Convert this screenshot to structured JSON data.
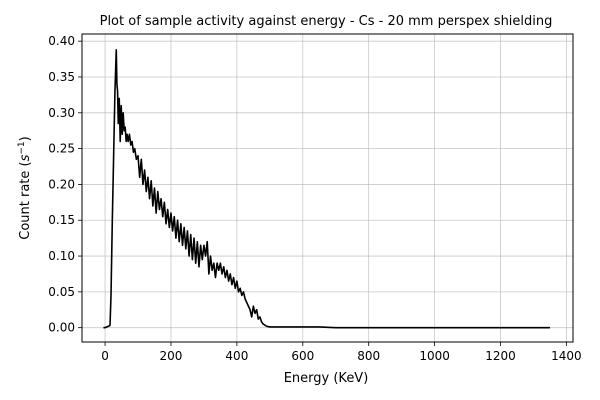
{
  "chart_data": {
    "type": "line",
    "title": "Plot of sample activity against energy - Cs - 20 mm perspex shielding",
    "xlabel": "Energy (KeV)",
    "ylabel_main": "Count rate (",
    "ylabel_base": "s",
    "ylabel_sup": "−1",
    "ylabel_close": ")",
    "xlim": [
      -70,
      1420
    ],
    "ylim": [
      -0.02,
      0.41
    ],
    "grid": true,
    "x_ticks": [
      0,
      200,
      400,
      600,
      800,
      1000,
      1200,
      1400
    ],
    "x_tick_labels": [
      "0",
      "200",
      "400",
      "600",
      "800",
      "1000",
      "1200",
      "1400"
    ],
    "y_ticks": [
      0.0,
      0.05,
      0.1,
      0.15,
      0.2,
      0.25,
      0.3,
      0.35,
      0.4
    ],
    "y_tick_labels": [
      "0.00",
      "0.05",
      "0.10",
      "0.15",
      "0.20",
      "0.25",
      "0.30",
      "0.35",
      "0.40"
    ],
    "series": [
      {
        "color": "#000000",
        "x": [
          -5,
          0,
          10,
          15,
          18,
          22,
          26,
          30,
          34,
          36,
          38,
          40,
          43,
          46,
          49,
          52,
          55,
          58,
          61,
          64,
          67,
          70,
          74,
          78,
          82,
          86,
          90,
          95,
          100,
          105,
          110,
          115,
          120,
          125,
          130,
          135,
          140,
          145,
          150,
          155,
          160,
          165,
          170,
          175,
          180,
          185,
          190,
          195,
          200,
          205,
          210,
          215,
          220,
          225,
          230,
          235,
          240,
          245,
          250,
          255,
          260,
          265,
          270,
          275,
          280,
          285,
          290,
          295,
          300,
          305,
          310,
          315,
          320,
          325,
          330,
          335,
          340,
          345,
          350,
          355,
          360,
          365,
          370,
          375,
          380,
          385,
          390,
          395,
          400,
          405,
          410,
          415,
          420,
          425,
          430,
          435,
          440,
          445,
          450,
          455,
          460,
          465,
          470,
          475,
          480,
          490,
          500,
          520,
          550,
          600,
          650,
          700,
          800,
          900,
          1000,
          1100,
          1200,
          1300,
          1350
        ],
        "y": [
          0.0,
          0.0,
          0.002,
          0.003,
          0.045,
          0.15,
          0.24,
          0.33,
          0.388,
          0.34,
          0.33,
          0.285,
          0.32,
          0.26,
          0.31,
          0.27,
          0.3,
          0.275,
          0.28,
          0.26,
          0.27,
          0.26,
          0.27,
          0.255,
          0.26,
          0.245,
          0.25,
          0.235,
          0.24,
          0.21,
          0.235,
          0.2,
          0.22,
          0.19,
          0.21,
          0.18,
          0.205,
          0.17,
          0.195,
          0.16,
          0.19,
          0.165,
          0.18,
          0.155,
          0.175,
          0.145,
          0.165,
          0.14,
          0.16,
          0.135,
          0.155,
          0.125,
          0.15,
          0.12,
          0.145,
          0.115,
          0.14,
          0.11,
          0.135,
          0.1,
          0.13,
          0.095,
          0.125,
          0.09,
          0.12,
          0.085,
          0.115,
          0.095,
          0.115,
          0.1,
          0.12,
          0.075,
          0.1,
          0.08,
          0.09,
          0.07,
          0.09,
          0.08,
          0.09,
          0.075,
          0.085,
          0.07,
          0.08,
          0.065,
          0.075,
          0.06,
          0.07,
          0.055,
          0.065,
          0.05,
          0.055,
          0.045,
          0.05,
          0.04,
          0.035,
          0.03,
          0.025,
          0.015,
          0.03,
          0.02,
          0.025,
          0.012,
          0.015,
          0.008,
          0.005,
          0.002,
          0.001,
          0.001,
          0.001,
          0.001,
          0.001,
          0.0,
          0.0,
          0.0,
          0.0,
          0.0,
          0.0,
          0.0,
          0.0
        ]
      }
    ]
  }
}
